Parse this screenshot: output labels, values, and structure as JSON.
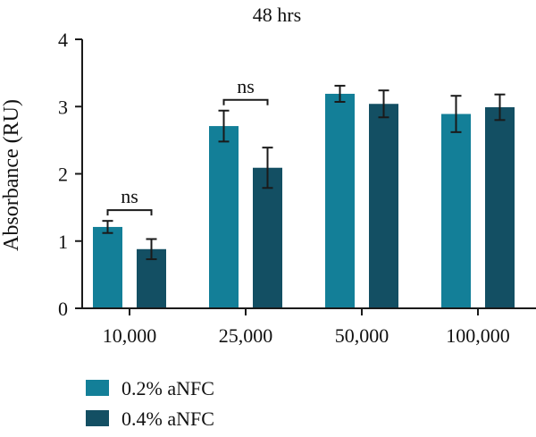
{
  "chart_data": {
    "type": "bar",
    "title": "48 hrs",
    "xlabel": "",
    "ylabel": "Absorbance (RU)",
    "ylim": [
      0,
      4
    ],
    "yticks": [
      "0",
      "1",
      "2",
      "3",
      "4"
    ],
    "categories": [
      "10,000",
      "25,000",
      "50,000",
      "100,000"
    ],
    "series": [
      {
        "name": "0.2% aNFC",
        "color": "#137f98",
        "values": [
          1.21,
          2.71,
          3.19,
          2.89
        ],
        "error": [
          0.09,
          0.23,
          0.12,
          0.27
        ]
      },
      {
        "name": "0.4% aNFC",
        "color": "#134f63",
        "values": [
          0.88,
          2.09,
          3.04,
          2.99
        ],
        "error": [
          0.15,
          0.3,
          0.2,
          0.19
        ]
      }
    ],
    "annotations": [
      {
        "category": "10,000",
        "text": "ns"
      },
      {
        "category": "25,000",
        "text": "ns"
      }
    ],
    "legend_position": "bottom-left",
    "grid": false
  }
}
